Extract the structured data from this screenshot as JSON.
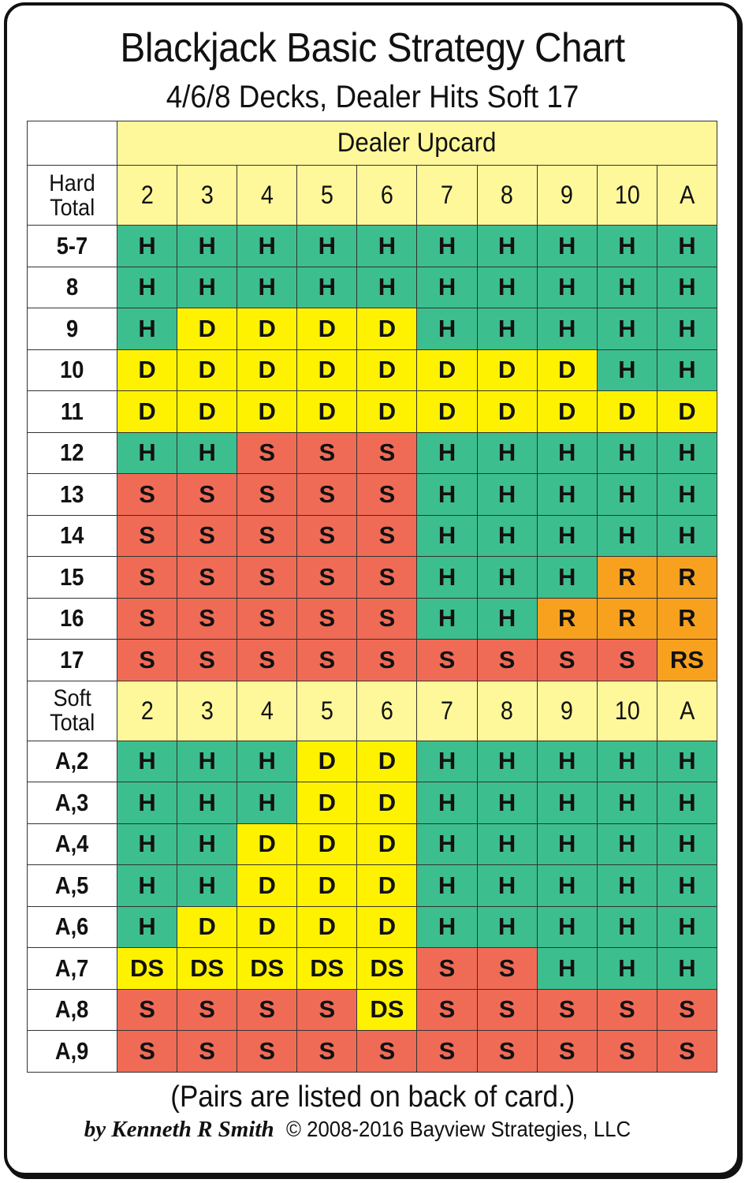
{
  "header": {
    "title": "Blackjack Basic Strategy Chart",
    "subtitle": "4/6/8 Decks, Dealer Hits Soft 17"
  },
  "colors": {
    "H": "#3dbe8f",
    "D": "#fff200",
    "DS": "#fff200",
    "S": "#f06b56",
    "R": "#f7a11f",
    "RS": "#f7a11f",
    "header_bg": "#fff89a"
  },
  "table": {
    "dealer_upcard_label": "Dealer Upcard",
    "upcards": [
      "2",
      "3",
      "4",
      "5",
      "6",
      "7",
      "8",
      "9",
      "10",
      "A"
    ],
    "hard": {
      "label_line1": "Hard",
      "label_line2": "Total",
      "rows": [
        {
          "label": "5-7",
          "cells": [
            "H",
            "H",
            "H",
            "H",
            "H",
            "H",
            "H",
            "H",
            "H",
            "H"
          ]
        },
        {
          "label": "8",
          "cells": [
            "H",
            "H",
            "H",
            "H",
            "H",
            "H",
            "H",
            "H",
            "H",
            "H"
          ]
        },
        {
          "label": "9",
          "cells": [
            "H",
            "D",
            "D",
            "D",
            "D",
            "H",
            "H",
            "H",
            "H",
            "H"
          ]
        },
        {
          "label": "10",
          "cells": [
            "D",
            "D",
            "D",
            "D",
            "D",
            "D",
            "D",
            "D",
            "H",
            "H"
          ]
        },
        {
          "label": "11",
          "cells": [
            "D",
            "D",
            "D",
            "D",
            "D",
            "D",
            "D",
            "D",
            "D",
            "D"
          ]
        },
        {
          "label": "12",
          "cells": [
            "H",
            "H",
            "S",
            "S",
            "S",
            "H",
            "H",
            "H",
            "H",
            "H"
          ]
        },
        {
          "label": "13",
          "cells": [
            "S",
            "S",
            "S",
            "S",
            "S",
            "H",
            "H",
            "H",
            "H",
            "H"
          ]
        },
        {
          "label": "14",
          "cells": [
            "S",
            "S",
            "S",
            "S",
            "S",
            "H",
            "H",
            "H",
            "H",
            "H"
          ]
        },
        {
          "label": "15",
          "cells": [
            "S",
            "S",
            "S",
            "S",
            "S",
            "H",
            "H",
            "H",
            "R",
            "R"
          ]
        },
        {
          "label": "16",
          "cells": [
            "S",
            "S",
            "S",
            "S",
            "S",
            "H",
            "H",
            "R",
            "R",
            "R"
          ]
        },
        {
          "label": "17",
          "cells": [
            "S",
            "S",
            "S",
            "S",
            "S",
            "S",
            "S",
            "S",
            "S",
            "RS"
          ]
        }
      ]
    },
    "soft": {
      "label_line1": "Soft",
      "label_line2": "Total",
      "rows": [
        {
          "label": "A,2",
          "cells": [
            "H",
            "H",
            "H",
            "D",
            "D",
            "H",
            "H",
            "H",
            "H",
            "H"
          ]
        },
        {
          "label": "A,3",
          "cells": [
            "H",
            "H",
            "H",
            "D",
            "D",
            "H",
            "H",
            "H",
            "H",
            "H"
          ]
        },
        {
          "label": "A,4",
          "cells": [
            "H",
            "H",
            "D",
            "D",
            "D",
            "H",
            "H",
            "H",
            "H",
            "H"
          ]
        },
        {
          "label": "A,5",
          "cells": [
            "H",
            "H",
            "D",
            "D",
            "D",
            "H",
            "H",
            "H",
            "H",
            "H"
          ]
        },
        {
          "label": "A,6",
          "cells": [
            "H",
            "D",
            "D",
            "D",
            "D",
            "H",
            "H",
            "H",
            "H",
            "H"
          ]
        },
        {
          "label": "A,7",
          "cells": [
            "DS",
            "DS",
            "DS",
            "DS",
            "DS",
            "S",
            "S",
            "H",
            "H",
            "H"
          ]
        },
        {
          "label": "A,8",
          "cells": [
            "S",
            "S",
            "S",
            "S",
            "DS",
            "S",
            "S",
            "S",
            "S",
            "S"
          ]
        },
        {
          "label": "A,9",
          "cells": [
            "S",
            "S",
            "S",
            "S",
            "S",
            "S",
            "S",
            "S",
            "S",
            "S"
          ]
        }
      ]
    }
  },
  "footer": {
    "note": "(Pairs are listed on back of card.)",
    "author": "by Kenneth R Smith",
    "copyright": "© 2008-2016 Bayview Strategies, LLC"
  },
  "chart_data": {
    "type": "table",
    "title": "Blackjack Basic Strategy Chart",
    "subtitle": "4/6/8 Decks, Dealer Hits Soft 17",
    "columns": [
      "2",
      "3",
      "4",
      "5",
      "6",
      "7",
      "8",
      "9",
      "10",
      "A"
    ],
    "column_group_label": "Dealer Upcard",
    "sections": [
      {
        "name": "Hard Total",
        "row_labels": [
          "5-7",
          "8",
          "9",
          "10",
          "11",
          "12",
          "13",
          "14",
          "15",
          "16",
          "17"
        ]
      },
      {
        "name": "Soft Total",
        "row_labels": [
          "A,2",
          "A,3",
          "A,4",
          "A,5",
          "A,6",
          "A,7",
          "A,8",
          "A,9"
        ]
      }
    ],
    "legend": {
      "H": "green",
      "D": "yellow",
      "DS": "yellow",
      "S": "red",
      "R": "orange",
      "RS": "orange"
    }
  }
}
